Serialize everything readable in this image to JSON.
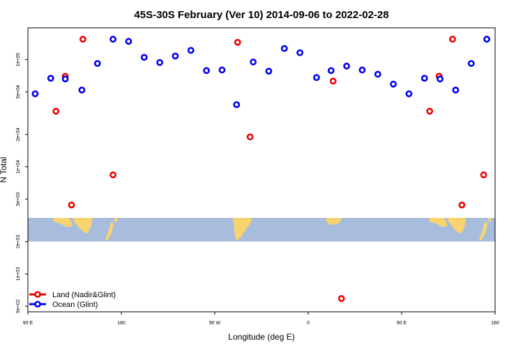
{
  "chart_data": {
    "type": "scatter",
    "title": "45S-30S February (Ver 10)   2014-09-06 to 2022-02-28",
    "xlabel": "Longitude (deg E)",
    "ylabel": "N Total",
    "x_scale": "linear",
    "y_scale": "log",
    "xlim": [
      90,
      540
    ],
    "x_ticks": [
      {
        "value": 90,
        "label": "90 E"
      },
      {
        "value": 180,
        "label": "180"
      },
      {
        "value": 270,
        "label": "90 W"
      },
      {
        "value": 360,
        "label": "0"
      },
      {
        "value": 450,
        "label": "90 E"
      },
      {
        "value": 540,
        "label": "180"
      }
    ],
    "y_ticks": [
      {
        "value": 500,
        "label": "5e+02"
      },
      {
        "value": 1000,
        "label": "1e+03"
      },
      {
        "value": 2000,
        "label": "2e+03"
      },
      {
        "value": 5000,
        "label": "5e+03"
      },
      {
        "value": 10000,
        "label": "1e+04"
      },
      {
        "value": 20000,
        "label": "2e+04"
      },
      {
        "value": 50000,
        "label": "5e+04"
      },
      {
        "value": 100000,
        "label": "1e+05"
      }
    ],
    "legend_position": "bottom-left",
    "background": "world map strip (Australia, South America, Africa) between 45S and 30S",
    "grid": false,
    "series": [
      {
        "name": "Land (Nadir&Glint)",
        "color": "#ee0000",
        "points": [
          {
            "x": 117,
            "y": 33000
          },
          {
            "x": 126,
            "y": 70000
          },
          {
            "x": 132,
            "y": 4400
          },
          {
            "x": 143,
            "y": 155000
          },
          {
            "x": 172,
            "y": 8400
          },
          {
            "x": 292,
            "y": 145000
          },
          {
            "x": 304,
            "y": 19000
          },
          {
            "x": 384,
            "y": 63000
          },
          {
            "x": 392,
            "y": 590
          },
          {
            "x": 477,
            "y": 33000
          },
          {
            "x": 486,
            "y": 70000
          },
          {
            "x": 499,
            "y": 155000
          },
          {
            "x": 508,
            "y": 4400
          },
          {
            "x": 529,
            "y": 8400
          }
        ]
      },
      {
        "name": "Ocean (Glint)",
        "color": "#0000ee",
        "points": [
          {
            "x": 97,
            "y": 48000
          },
          {
            "x": 112,
            "y": 67000
          },
          {
            "x": 126,
            "y": 66000
          },
          {
            "x": 142,
            "y": 52000
          },
          {
            "x": 157,
            "y": 92000
          },
          {
            "x": 172,
            "y": 155000
          },
          {
            "x": 187,
            "y": 148000
          },
          {
            "x": 202,
            "y": 105000
          },
          {
            "x": 217,
            "y": 94000
          },
          {
            "x": 232,
            "y": 108000
          },
          {
            "x": 247,
            "y": 122000
          },
          {
            "x": 262,
            "y": 79000
          },
          {
            "x": 277,
            "y": 80000
          },
          {
            "x": 291,
            "y": 38000
          },
          {
            "x": 307,
            "y": 95000
          },
          {
            "x": 322,
            "y": 78000
          },
          {
            "x": 337,
            "y": 127000
          },
          {
            "x": 352,
            "y": 116000
          },
          {
            "x": 368,
            "y": 68000
          },
          {
            "x": 382,
            "y": 79000
          },
          {
            "x": 397,
            "y": 87000
          },
          {
            "x": 412,
            "y": 80000
          },
          {
            "x": 427,
            "y": 73000
          },
          {
            "x": 442,
            "y": 59000
          },
          {
            "x": 457,
            "y": 48000
          },
          {
            "x": 472,
            "y": 67000
          },
          {
            "x": 487,
            "y": 66000
          },
          {
            "x": 502,
            "y": 52000
          },
          {
            "x": 517,
            "y": 92000
          },
          {
            "x": 532,
            "y": 155000
          }
        ]
      }
    ]
  }
}
